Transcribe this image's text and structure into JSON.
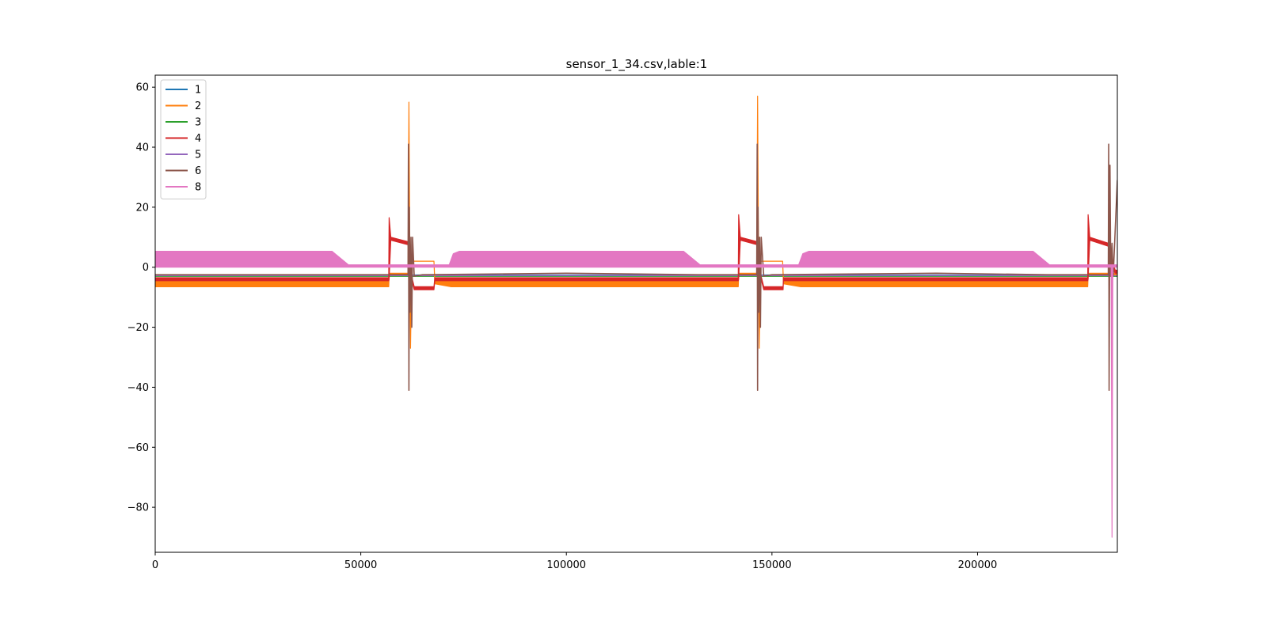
{
  "chart_data": {
    "type": "line",
    "title": "sensor_1_34.csv,lable:1",
    "xlabel": "",
    "ylabel": "",
    "xlim": [
      0,
      234000
    ],
    "ylim": [
      -95,
      64
    ],
    "xticks": [
      0,
      50000,
      100000,
      150000,
      200000
    ],
    "xtick_labels": [
      "0",
      "50000",
      "100000",
      "150000",
      "200000"
    ],
    "yticks": [
      60,
      40,
      20,
      0,
      -20,
      -40,
      -60,
      -80
    ],
    "ytick_labels": [
      "60",
      "40",
      "20",
      "0",
      "−20",
      "−40",
      "−60",
      "−80"
    ],
    "grid": false,
    "legend_position": "top-left",
    "series": [
      {
        "name": "1",
        "color": "#1f77b4",
        "style": "line",
        "x": [
          0,
          56900,
          57000,
          62000,
          68000,
          142000,
          147000,
          153000,
          227000,
          233000,
          234000
        ],
        "y": [
          -2.5,
          -2.5,
          -2.6,
          -2.6,
          -2.6,
          -2.6,
          -2.6,
          -2.6,
          -2.6,
          -2.6,
          -2.6
        ]
      },
      {
        "name": "2",
        "color": "#ff7f0e",
        "style": "band",
        "x": [
          0,
          56800,
          56900,
          61500,
          61700,
          61900,
          62100,
          62400,
          63000,
          67800,
          68000,
          72000,
          100000,
          141800,
          141900,
          146300,
          146500,
          146700,
          146900,
          147200,
          148000,
          152600,
          152800,
          157000,
          190000,
          226800,
          226900,
          233000,
          234000
        ],
        "ylow": [
          -6.5,
          -6.5,
          -2.5,
          -2.5,
          2,
          2,
          2,
          2,
          2,
          2,
          -5.5,
          -6.5,
          -6.5,
          -6.5,
          -2.5,
          -2.5,
          2,
          2,
          2,
          2,
          2,
          2,
          -5.5,
          -6.5,
          -6.5,
          -6.5,
          -2.5,
          -2.5,
          -2.5
        ],
        "yhigh": [
          -4,
          -4,
          -2,
          -2,
          55,
          12,
          -27,
          2,
          2,
          2,
          -4.5,
          -4,
          -4,
          -4,
          -2,
          -2,
          57,
          12,
          -27,
          2,
          2,
          2,
          -4.5,
          -4,
          -4,
          -4,
          -2,
          -2,
          -2
        ]
      },
      {
        "name": "3",
        "color": "#2ca02c",
        "style": "line",
        "x": [
          0,
          234000
        ],
        "y": [
          -3.0,
          -3.0
        ]
      },
      {
        "name": "4",
        "color": "#d62728",
        "style": "band",
        "x": [
          0,
          56800,
          56900,
          57300,
          61500,
          62000,
          63000,
          67800,
          68000,
          141800,
          141900,
          142300,
          146400,
          147000,
          148000,
          152700,
          152800,
          226800,
          226900,
          227300,
          231800,
          232500,
          233500,
          234000
        ],
        "ylow": [
          -4.5,
          -4.5,
          -4,
          9,
          7.5,
          -2,
          -7.5,
          -7.5,
          -4.5,
          -4.5,
          -4,
          9,
          7.5,
          -2,
          -7.5,
          -7.5,
          -4.5,
          -4.5,
          -4,
          9,
          7,
          0,
          -2,
          -2
        ],
        "yhigh": [
          -3.5,
          -3.5,
          16.5,
          10,
          8.5,
          -1,
          -6.5,
          -6.5,
          -3.5,
          -3.5,
          17.5,
          10,
          8.5,
          -1,
          -6.5,
          -6.5,
          -3.5,
          -3.5,
          17.5,
          10,
          8,
          3,
          -1,
          -1
        ]
      },
      {
        "name": "5",
        "color": "#9467bd",
        "style": "line",
        "x": [
          0,
          234000
        ],
        "y": [
          -2.8,
          -2.8
        ]
      },
      {
        "name": "6",
        "color": "#8c564b",
        "style": "spikes",
        "x": [
          0,
          48000,
          61500,
          61600,
          61700,
          61800,
          62000,
          62200,
          62400,
          62600,
          63000,
          65000,
          100000,
          132000,
          146300,
          146400,
          146500,
          146600,
          146800,
          147000,
          147200,
          147400,
          148000,
          150000,
          190000,
          217000,
          231800,
          231900,
          232000,
          232200,
          232400,
          232700,
          233000,
          234000
        ],
        "y": [
          -2.5,
          -2.5,
          -2.5,
          41,
          -41,
          20,
          -15,
          10,
          -20,
          10,
          -3,
          -2.5,
          -2.0,
          -2.5,
          -2.5,
          41,
          -41,
          20,
          -15,
          10,
          -20,
          10,
          -3,
          -2.5,
          -2.0,
          -2.5,
          -2.5,
          41,
          -41,
          34,
          -3,
          8,
          -3,
          29
        ]
      },
      {
        "name": "8",
        "color": "#e377c2",
        "style": "band",
        "x": [
          0,
          43000,
          47000,
          71500,
          72500,
          74000,
          128500,
          132500,
          156500,
          157500,
          159000,
          213500,
          217500,
          232500,
          232700,
          232900,
          234000
        ],
        "ylow": [
          0,
          0,
          0,
          0,
          0,
          0,
          0,
          0,
          0,
          0,
          0,
          0,
          0,
          0,
          -90,
          0,
          0
        ],
        "yhigh": [
          5.3,
          5.3,
          0.8,
          0.8,
          4.5,
          5.3,
          5.3,
          0.8,
          0.8,
          4.5,
          5.3,
          5.3,
          0.8,
          0.8,
          0.8,
          0.8,
          0.8
        ]
      }
    ]
  }
}
